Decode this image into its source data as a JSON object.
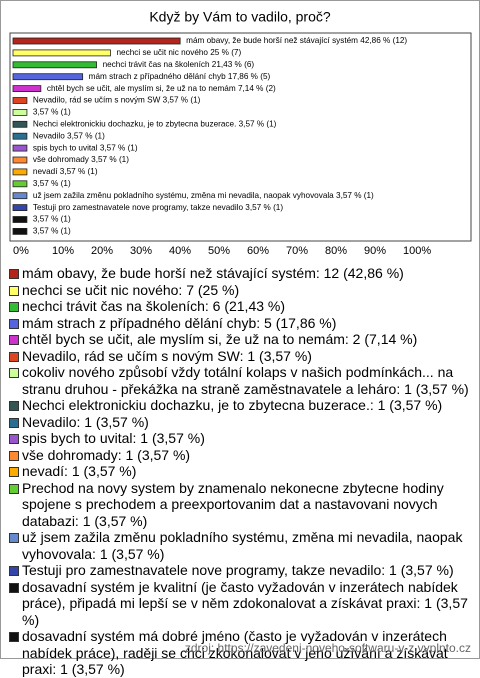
{
  "chart_data": {
    "type": "bar",
    "orientation": "horizontal",
    "title": "Když by Vám to vadilo, proč?",
    "categories": [
      "mám obavy, že bude horší než stávající systém: 12 (42,86 %)",
      "nechci se učit nic nového: 7 (25 %)",
      "nechci trávit čas na školeních: 6 (21,43 %)",
      "mám strach z případného dělání chyb: 5 (17,86 %)",
      "chtěl bych se učit, ale myslím si, že už na to nemám: 2 (7,14 %)",
      "Nevadilo, rád se učím s novým SW: 1 (3,57 %)",
      "cokoliv nového způsobí vždy totální kolaps v našich podmínkách... na stranu druhou - překážka na straně zaměstnavatele a leháro: 1 (3,57 %)",
      "Nechci elektronickiu dochazku, je to zbytecna buzerace.: 1 (3,57 %)",
      "Nevadilo: 1 (3,57 %)",
      "spis bych to uvital: 1 (3,57 %)",
      "vše dohromady: 1 (3,57 %)",
      "nevadí: 1 (3,57 %)",
      "Prechod na novy system by znamenalo nekonecne zbytecne hodiny spojene s prechodem a preexportovanim dat a nastavovani novych databazi: 1 (3,57 %)",
      "už jsem zažila změnu pokladního systému, změna mi nevadila, naopak vyhovovala: 1 (3,57 %)",
      "Testuji pro zamestnavatele nove programy, takze nevadilo: 1 (3,57 %)",
      "dosavadní systém je kvalitní (je často vyžadován v inzerátech nabídek práce), připadá mi lepší se v něm zdokonalovat a získávat praxi: 1 (3,57 %)",
      "dosavadní systém má dobré jméno (často je vyžadován v inzerátech nabídek práce), raději se chci zkokonalovat v jeho užívání a získávat praxi: 1 (3,57 %)"
    ],
    "values": [
      42.86,
      25,
      21.43,
      17.86,
      7.14,
      3.57,
      3.57,
      3.57,
      3.57,
      3.57,
      3.57,
      3.57,
      3.57,
      3.57,
      3.57,
      3.57,
      3.57
    ],
    "value_labels": [
      "mám obavy, že bude horší než stávající systém 42,86 % (12)",
      "nechci se učit nic nového 25 % (7)",
      "nechci trávit čas na školeních 21,43 % (6)",
      "mám strach z případného dělání chyb 17,86 % (5)",
      "chtěl bych se učit, ale myslím si, že už na to nemám 7,14 % (2)",
      "Nevadilo, rád se učím s novým SW 3,57 % (1)",
      "3,57 % (1)",
      "Nechci elektronickiu dochazku, je to zbytecna buzerace. 3,57 % (1)",
      "Nevadilo 3,57 % (1)",
      "spis bych to uvital 3,57 % (1)",
      "vše dohromady 3,57 % (1)",
      "nevadí 3,57 % (1)",
      "3,57 % (1)",
      "už jsem zažila změnu pokladního systému, změna mi nevadila, naopak vyhovovala 3,57 % (1)",
      "Testuji pro zamestnavatele nove programy, takze nevadilo 3,57 % (1)",
      "3,57 % (1)",
      "3,57 % (1)"
    ],
    "colors": [
      "#b3261e",
      "#ffff66",
      "#33bb33",
      "#5566dd",
      "#cc33cc",
      "#dd4422",
      "#ccff99",
      "#335555",
      "#2a6f8f",
      "#9955cc",
      "#ff8833",
      "#ffaa00",
      "#66cc33",
      "#6688cc",
      "#3344aa",
      "#111111",
      "#111111"
    ],
    "xlim": [
      0,
      100
    ],
    "xticks": [
      {
        "value": 0,
        "label": "0%"
      },
      {
        "value": 10,
        "label": "10%"
      },
      {
        "value": 20,
        "label": "20%"
      },
      {
        "value": 30,
        "label": "30%"
      },
      {
        "value": 40,
        "label": "40%"
      },
      {
        "value": 50,
        "label": "50%"
      },
      {
        "value": 60,
        "label": "60%"
      },
      {
        "value": 70,
        "label": "70%"
      },
      {
        "value": 80,
        "label": "80%"
      },
      {
        "value": 90,
        "label": "90%"
      },
      {
        "value": 100,
        "label": "100%"
      }
    ],
    "source": "zdroj: https://zavedeni-noveho-softwaru-v-z.vyplnto.cz"
  }
}
